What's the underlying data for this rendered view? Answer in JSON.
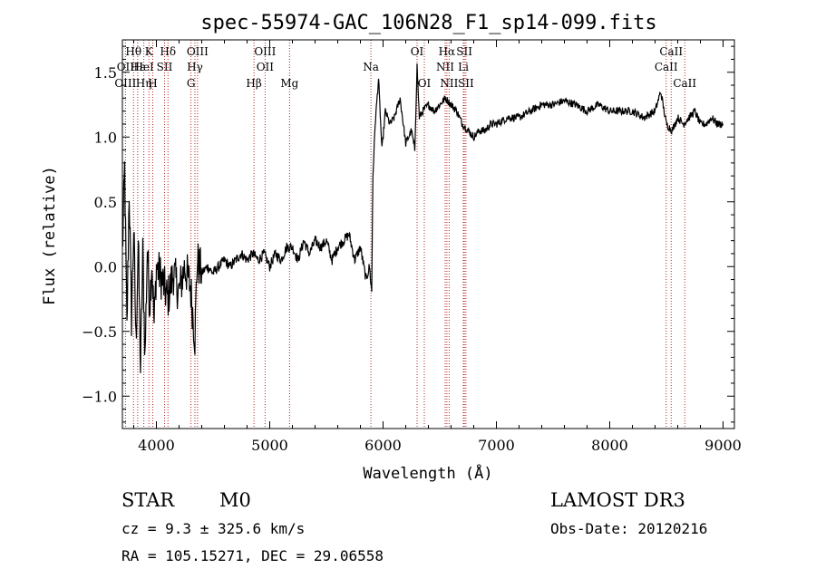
{
  "chart_data": {
    "type": "line",
    "title": "spec-55974-GAC_106N28_F1_sp14-099.fits",
    "xlabel": "Wavelength (Å)",
    "ylabel": "Flux (relative)",
    "xlim": [
      3700,
      9100
    ],
    "ylim": [
      -1.25,
      1.75
    ],
    "xticks": [
      4000,
      5000,
      6000,
      7000,
      8000,
      9000
    ],
    "yticks": [
      -1.0,
      -0.5,
      0.0,
      0.5,
      1.0,
      1.5
    ],
    "ytick_labels": [
      "−1.0",
      "−0.5",
      "0.0",
      "0.5",
      "1.0",
      "1.5"
    ],
    "grid": false,
    "series": [
      {
        "x": [
          3700,
          3720,
          3740,
          3760,
          3780,
          3800,
          3820,
          3840,
          3860,
          3880,
          3900,
          3920,
          3940,
          3960,
          3980,
          4000,
          4050,
          4100,
          4150,
          4200,
          4250,
          4300,
          4340,
          4360,
          4400,
          4450,
          4500,
          4550,
          4600,
          4650,
          4700,
          4750,
          4800,
          4850,
          4900,
          4950,
          5000,
          5050,
          5100,
          5150,
          5200,
          5250,
          5300,
          5350,
          5400,
          5450,
          5500,
          5550,
          5600,
          5650,
          5700,
          5750,
          5800,
          5850,
          5880,
          5900,
          5910,
          5930,
          5960,
          5990,
          6020,
          6060,
          6100,
          6150,
          6200,
          6250,
          6280,
          6300,
          6320,
          6350,
          6400,
          6450,
          6500,
          6550,
          6600,
          6650,
          6700,
          6750,
          6800,
          6850,
          6900,
          6950,
          7000,
          7100,
          7200,
          7300,
          7400,
          7500,
          7600,
          7700,
          7800,
          7900,
          8000,
          8100,
          8200,
          8300,
          8400,
          8450,
          8500,
          8550,
          8600,
          8650,
          8700,
          8750,
          8800,
          8850,
          8900,
          8950,
          9000
        ],
        "y": [
          0.1,
          0.75,
          -0.5,
          0.6,
          -0.4,
          0.3,
          -0.6,
          0.2,
          -0.8,
          0.1,
          -0.7,
          0.15,
          -0.3,
          0.05,
          -0.45,
          0.0,
          -0.1,
          -0.25,
          -0.05,
          -0.2,
          0.0,
          -0.15,
          -0.55,
          0.05,
          -0.05,
          0.0,
          -0.05,
          0.0,
          0.05,
          0.0,
          0.05,
          0.1,
          0.05,
          0.1,
          0.05,
          0.1,
          0.0,
          0.1,
          0.05,
          0.15,
          0.15,
          0.05,
          0.2,
          0.1,
          0.2,
          0.15,
          0.2,
          0.05,
          0.15,
          0.2,
          0.25,
          0.05,
          0.15,
          -0.1,
          0.0,
          -0.2,
          0.7,
          1.1,
          1.45,
          0.9,
          1.2,
          1.1,
          1.15,
          1.3,
          0.95,
          1.05,
          0.9,
          1.55,
          1.15,
          1.2,
          1.25,
          1.2,
          1.25,
          1.3,
          1.25,
          1.2,
          1.1,
          1.05,
          1.0,
          1.05,
          1.05,
          1.1,
          1.1,
          1.15,
          1.15,
          1.2,
          1.25,
          1.25,
          1.28,
          1.25,
          1.2,
          1.25,
          1.2,
          1.2,
          1.2,
          1.15,
          1.2,
          1.35,
          1.1,
          1.05,
          1.15,
          1.1,
          1.15,
          1.2,
          1.1,
          1.1,
          1.15,
          1.1,
          1.1
        ]
      }
    ],
    "line_markers": [
      {
        "label": "Hθ",
        "x": 3798,
        "row": 0
      },
      {
        "label": "OII",
        "x": 3727,
        "row": 1
      },
      {
        "label": "OIII",
        "x": 3727,
        "row": 2
      },
      {
        "label": "Hε",
        "x": 3835,
        "row": 1
      },
      {
        "label": "Hη",
        "x": 3889,
        "row": 2
      },
      {
        "label": "K",
        "x": 3934,
        "row": 0
      },
      {
        "label": "HeI",
        "x": 3889,
        "row": 1
      },
      {
        "label": "H",
        "x": 3968,
        "row": 2
      },
      {
        "label": "SII",
        "x": 4072,
        "row": 1
      },
      {
        "label": "Hδ",
        "x": 4102,
        "row": 0
      },
      {
        "label": "OIII",
        "x": 4363,
        "row": 0
      },
      {
        "label": "Hγ",
        "x": 4340,
        "row": 1
      },
      {
        "label": "G",
        "x": 4305,
        "row": 2
      },
      {
        "label": "Hβ",
        "x": 4861,
        "row": 2
      },
      {
        "label": "OIII",
        "x": 4959,
        "row": 0
      },
      {
        "label": "OII",
        "x": 4959,
        "row": 1
      },
      {
        "label": "Mg",
        "x": 5175,
        "row": 2
      },
      {
        "label": "Na",
        "x": 5893,
        "row": 1
      },
      {
        "label": "OI",
        "x": 6300,
        "row": 0
      },
      {
        "label": "OI",
        "x": 6364,
        "row": 2
      },
      {
        "label": "Hα",
        "x": 6563,
        "row": 0
      },
      {
        "label": "NII",
        "x": 6548,
        "row": 1
      },
      {
        "label": "NII",
        "x": 6583,
        "row": 2
      },
      {
        "label": "SII",
        "x": 6717,
        "row": 0
      },
      {
        "label": "Li",
        "x": 6708,
        "row": 1
      },
      {
        "label": "SII",
        "x": 6731,
        "row": 2
      },
      {
        "label": "CaII",
        "x": 8542,
        "row": 0
      },
      {
        "label": "CaII",
        "x": 8498,
        "row": 1
      },
      {
        "label": "CaII",
        "x": 8662,
        "row": 2
      }
    ]
  },
  "info": {
    "object_class": "STAR",
    "subclass": "M0",
    "survey": "LAMOST DR3",
    "redshift": "cz = 9.3 ± 325.6 km/s",
    "obs_date": "Obs-Date: 20120216",
    "coords": "RA = 105.15271, DEC =  29.06558"
  },
  "colors": {
    "axis": "#000000",
    "spectrum": "#000000",
    "marker_line": "#b22222"
  }
}
